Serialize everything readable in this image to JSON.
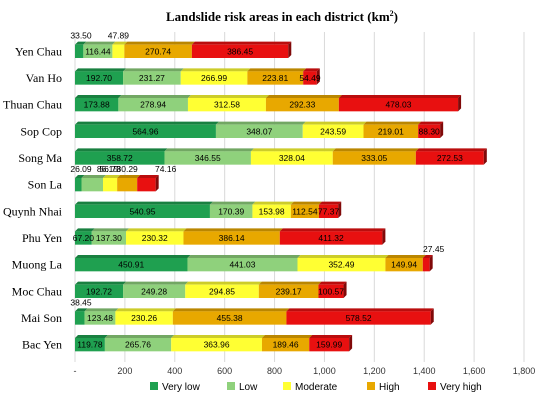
{
  "chart_data": {
    "type": "bar",
    "orientation": "horizontal",
    "stacked": true,
    "title": "Landslide risk areas in each district (km",
    "title_superscript": "2",
    "title_close": ")",
    "categories": [
      "Yen Chau",
      "Van Ho",
      "Thuan Chau",
      "Sop Cop",
      "Song Ma",
      "Son La",
      "Quynh Nhai",
      "Phu Yen",
      "Muong La",
      "Moc Chau",
      "Mai Son",
      "Bac Yen"
    ],
    "series": [
      {
        "name": "Very low",
        "color": "#1fa050",
        "values": [
          33.5,
          192.7,
          173.88,
          564.96,
          358.72,
          26.09,
          540.95,
          67.2,
          450.91,
          192.72,
          38.45,
          119.78
        ]
      },
      {
        "name": "Low",
        "color": "#8fd17c",
        "values": [
          116.44,
          231.27,
          278.94,
          348.07,
          346.55,
          86.15,
          170.39,
          137.3,
          441.03,
          249.28,
          123.48,
          265.76
        ]
      },
      {
        "name": "Moderate",
        "color": "#ffff33",
        "values": [
          47.89,
          266.99,
          312.58,
          243.59,
          328.04,
          56.73,
          153.98,
          230.32,
          352.49,
          294.85,
          230.26,
          363.96
        ]
      },
      {
        "name": "High",
        "color": "#e8a800",
        "values": [
          270.74,
          223.81,
          292.33,
          219.01,
          333.05,
          80.29,
          112.54,
          386.14,
          149.94,
          239.17,
          455.38,
          189.46
        ]
      },
      {
        "name": "Very high",
        "color": "#e81010",
        "values": [
          386.45,
          54.49,
          478.03,
          88.3,
          272.53,
          74.16,
          77.37,
          411.32,
          27.45,
          100.57,
          578.52,
          159.99
        ]
      }
    ],
    "data_labels": [
      [
        "33.50",
        "116.44",
        "47.89",
        "270.74",
        "386.45"
      ],
      [
        "192.70",
        "231.27",
        "266.99",
        "223.81",
        "54.49"
      ],
      [
        "173.88",
        "278.94",
        "312.58",
        "292.33",
        "478.03"
      ],
      [
        "564.96",
        "348.07",
        "243.59",
        "219.01",
        "88.30"
      ],
      [
        "358.72",
        "346.55",
        "328.04",
        "333.05",
        "272.53"
      ],
      [
        "26.09",
        "86.15",
        "56.73",
        "80.29",
        "74.16"
      ],
      [
        "540.95",
        "170.39",
        "153.98",
        "112.54",
        "77.37"
      ],
      [
        "67.20",
        "137.30",
        "230.32",
        "386.14",
        "411.32"
      ],
      [
        "450.91",
        "441.03",
        "352.49",
        "149.94",
        "27.45"
      ],
      [
        "192.72",
        "249.28",
        "294.85",
        "239.17",
        "100.57"
      ],
      [
        "38.45",
        "123.48",
        "230.26",
        "455.38",
        "578.52"
      ],
      [
        "119.78",
        "265.76",
        "363.96",
        "189.46",
        "159.99"
      ]
    ],
    "x_ticks": [
      "-",
      "200",
      "400",
      "600",
      "800",
      "1,000",
      "1,200",
      "1,400",
      "1,600",
      "1,800"
    ],
    "xlim": [
      0,
      1800
    ],
    "legend_position": "bottom",
    "grid": "vertical"
  }
}
